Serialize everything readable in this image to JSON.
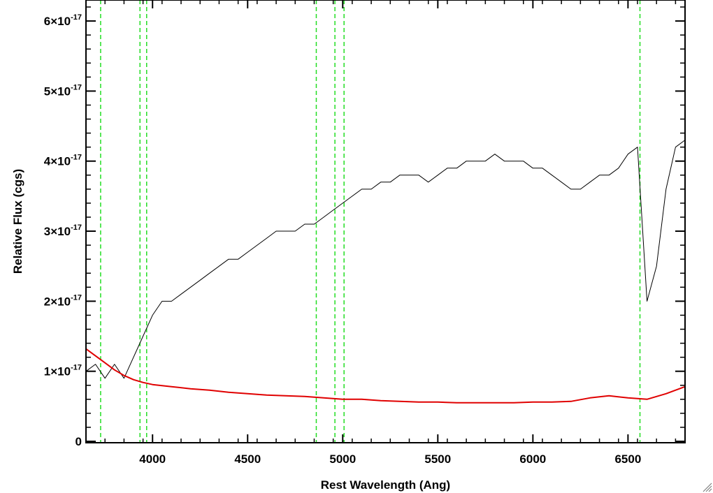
{
  "chart_data": {
    "type": "line",
    "xlabel": "Rest Wavelength (Ang)",
    "ylabel": "Relative Flux (cgs)",
    "xlim": [
      3650,
      6800
    ],
    "ylim": [
      -0.02,
      6.3
    ],
    "y_unit_exponent": -17,
    "x_ticks": [
      4000,
      4500,
      5000,
      5500,
      6000,
      6500
    ],
    "x_tick_labels": [
      "4000",
      "4500",
      "5000",
      "5500",
      "6000",
      "6500"
    ],
    "y_ticks": [
      0,
      1,
      2,
      3,
      4,
      5,
      6
    ],
    "y_tick_labels": [
      {
        "mantissa": "0",
        "exp": ""
      },
      {
        "mantissa": "1×10",
        "exp": "-17"
      },
      {
        "mantissa": "2×10",
        "exp": "-17"
      },
      {
        "mantissa": "3×10",
        "exp": "-17"
      },
      {
        "mantissa": "4×10",
        "exp": "-17"
      },
      {
        "mantissa": "5×10",
        "exp": "-17"
      },
      {
        "mantissa": "6×10",
        "exp": "-17"
      }
    ],
    "grid": false,
    "vlines": [
      3727,
      3934,
      3969,
      4861,
      4959,
      5007,
      6563
    ],
    "series": [
      {
        "color": "#000000",
        "x": [
          3650,
          3700,
          3750,
          3800,
          3850,
          3900,
          3950,
          4000,
          4050,
          4100,
          4150,
          4200,
          4250,
          4300,
          4350,
          4400,
          4450,
          4500,
          4550,
          4600,
          4650,
          4700,
          4750,
          4800,
          4850,
          4900,
          4950,
          5000,
          5050,
          5100,
          5150,
          5200,
          5250,
          5300,
          5350,
          5400,
          5450,
          5500,
          5550,
          5600,
          5650,
          5700,
          5750,
          5800,
          5850,
          5900,
          5950,
          6000,
          6050,
          6100,
          6150,
          6200,
          6250,
          6300,
          6350,
          6400,
          6450,
          6500,
          6550,
          6600,
          6650,
          6700,
          6750,
          6800
        ],
        "y": [
          1.0,
          1.1,
          0.9,
          1.1,
          0.9,
          1.2,
          1.5,
          1.8,
          2.0,
          2.0,
          2.1,
          2.2,
          2.3,
          2.4,
          2.5,
          2.6,
          2.6,
          2.7,
          2.8,
          2.9,
          3.0,
          3.0,
          3.0,
          3.1,
          3.1,
          3.2,
          3.3,
          3.4,
          3.5,
          3.6,
          3.6,
          3.7,
          3.7,
          3.8,
          3.8,
          3.8,
          3.7,
          3.8,
          3.9,
          3.9,
          4.0,
          4.0,
          4.0,
          4.1,
          4.0,
          4.0,
          4.0,
          3.9,
          3.9,
          3.8,
          3.7,
          3.6,
          3.6,
          3.7,
          3.8,
          3.8,
          3.9,
          4.1,
          4.2,
          2.0,
          2.5,
          3.6,
          4.2,
          4.3
        ]
      },
      {
        "color": "#e00000",
        "x": [
          3650,
          3700,
          3750,
          3800,
          3850,
          3900,
          3950,
          4000,
          4100,
          4200,
          4300,
          4400,
          4500,
          4600,
          4700,
          4800,
          4900,
          5000,
          5100,
          5200,
          5300,
          5400,
          5500,
          5600,
          5700,
          5800,
          5900,
          6000,
          6100,
          6200,
          6300,
          6400,
          6500,
          6600,
          6700,
          6800
        ],
        "y": [
          1.32,
          1.22,
          1.12,
          1.02,
          0.94,
          0.88,
          0.84,
          0.81,
          0.78,
          0.75,
          0.73,
          0.7,
          0.68,
          0.66,
          0.65,
          0.64,
          0.62,
          0.6,
          0.6,
          0.58,
          0.57,
          0.56,
          0.56,
          0.55,
          0.55,
          0.55,
          0.55,
          0.56,
          0.56,
          0.57,
          0.62,
          0.65,
          0.62,
          0.6,
          0.68,
          0.78
        ]
      }
    ]
  }
}
